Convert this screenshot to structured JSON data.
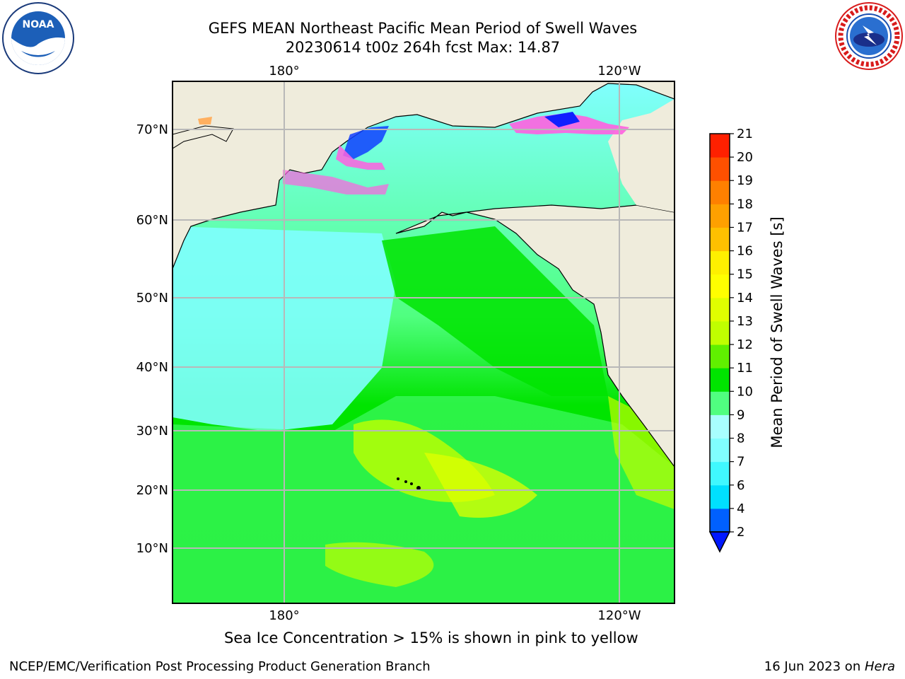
{
  "header": {
    "title_line1": "GEFS MEAN Northeast Pacific Mean Period of Swell Waves",
    "title_line2": "20230614 t00z 264h fcst   Max: 14.87"
  },
  "logos": {
    "left": {
      "name": "noaa-logo",
      "text": "NOAA",
      "ring_text": "NATIONAL OCEANIC AND ATMOSPHERIC ADMINISTRATION · U.S. DEPARTMENT OF COMMERCE"
    },
    "right": {
      "name": "nws-logo",
      "ring_text": "NATIONAL WEATHER SERVICE"
    }
  },
  "map": {
    "lon_labels": [
      "180°",
      "120°W"
    ],
    "lat_labels": [
      "70°N",
      "60°N",
      "50°N",
      "40°N",
      "30°N",
      "20°N",
      "10°N"
    ],
    "colors": {
      "land": "#efecdc",
      "grid": "#b8b8b8",
      "coast": "#000000"
    }
  },
  "colorbar": {
    "label": "Mean Period of Swell Waves [s]",
    "ticks": [
      "2",
      "4",
      "6",
      "7",
      "8",
      "9",
      "10",
      "11",
      "12",
      "13",
      "14",
      "15",
      "16",
      "17",
      "18",
      "19",
      "20",
      "21"
    ],
    "colors": [
      "#0060ff",
      "#00e0ff",
      "#40f8ff",
      "#80ffff",
      "#a8ffff",
      "#50ff80",
      "#00e400",
      "#60f000",
      "#c0ff00",
      "#e0ff00",
      "#ffff00",
      "#fff000",
      "#ffc000",
      "#ffa000",
      "#ff8000",
      "#ff5000",
      "#ff2000"
    ],
    "extend_color": "#0018ff"
  },
  "notes": {
    "ice": "Sea Ice Concentration > 15% is shown in pink to yellow"
  },
  "footer": {
    "left": "NCEP/EMC/Verification Post Processing Product Generation Branch",
    "right_prefix": "16 Jun 2023 on ",
    "right_host": "Hera"
  }
}
